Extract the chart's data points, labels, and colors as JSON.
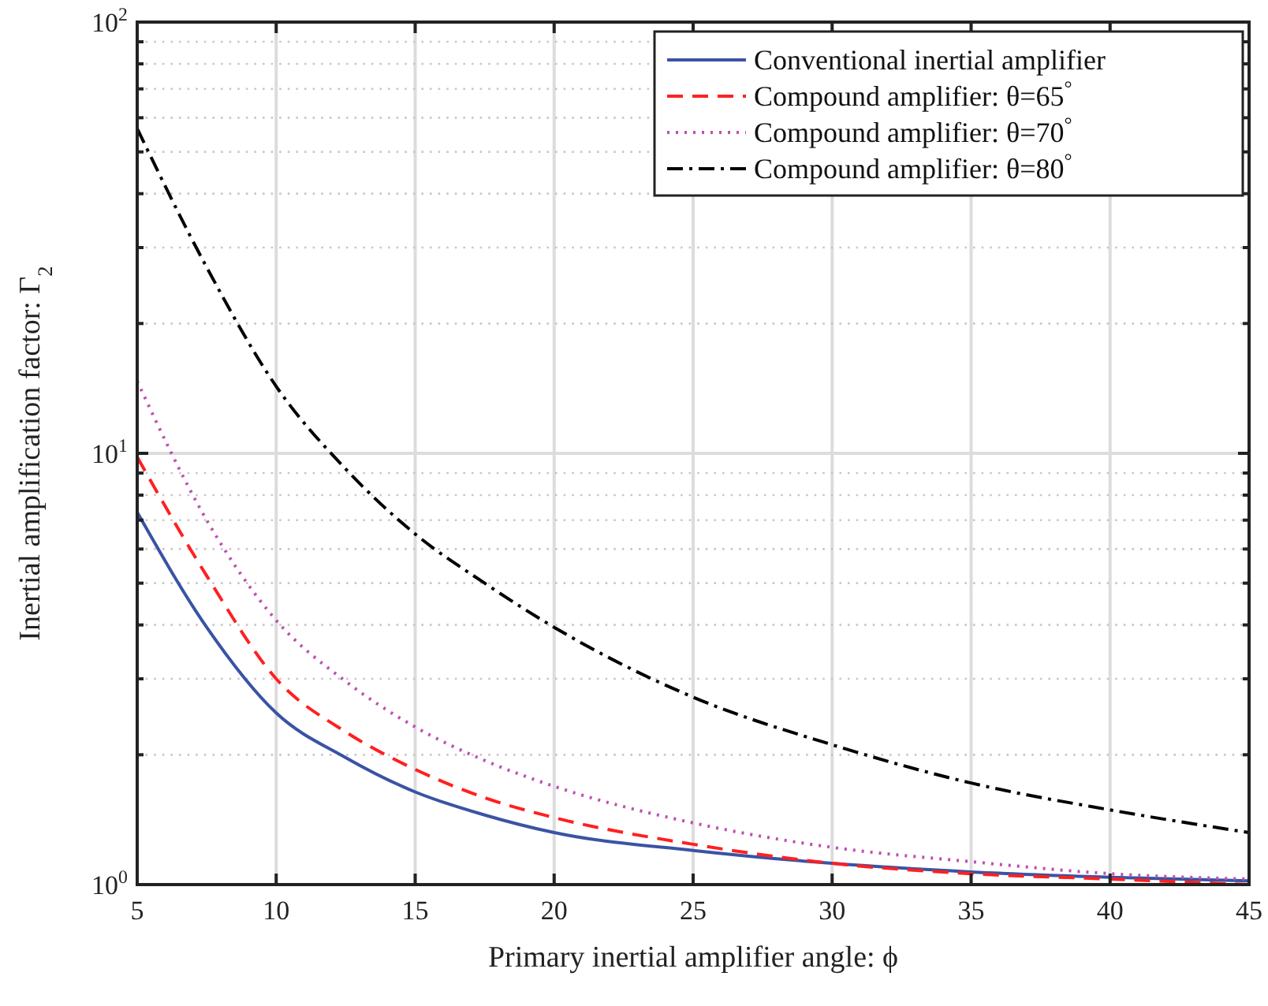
{
  "chart_data": {
    "type": "line",
    "xlabel": "Primary inertial amplifier angle: ϕ",
    "ylabel": "Inertial amplification factor: Γ$_{2}$",
    "log": "y",
    "grid": true,
    "legend": "top right",
    "xlim": [
      5,
      45
    ],
    "xticks": [
      5,
      10,
      15,
      20,
      25,
      30,
      35,
      40,
      45
    ],
    "ylim": [
      1,
      100
    ],
    "yticks": [
      {
        "value": 1,
        "label": "10$^{0}$"
      },
      {
        "value": 2,
        "label": null
      },
      {
        "value": 3,
        "label": null
      },
      {
        "value": 4,
        "label": null
      },
      {
        "value": 5,
        "label": null
      },
      {
        "value": 6,
        "label": null
      },
      {
        "value": 7,
        "label": null
      },
      {
        "value": 8,
        "label": null
      },
      {
        "value": 9,
        "label": null
      },
      {
        "value": 10,
        "label": "10$^{1}$"
      },
      {
        "value": 20,
        "label": null
      },
      {
        "value": 30,
        "label": null
      },
      {
        "value": 40,
        "label": null
      },
      {
        "value": 50,
        "label": null
      },
      {
        "value": 60,
        "label": null
      },
      {
        "value": 70,
        "label": null
      },
      {
        "value": 80,
        "label": null
      },
      {
        "value": 90,
        "label": null
      },
      {
        "value": 100,
        "label": "10$^{2}$"
      }
    ],
    "x": [
      5,
      7.5,
      10,
      12.5,
      15,
      17.5,
      20,
      25,
      30,
      35,
      40,
      45
    ],
    "series": [
      {
        "name": "Conventional inertial amplifier",
        "color": "#3a53a4",
        "line_style": "solid",
        "values": [
          7.3,
          3.95,
          2.5,
          1.97,
          1.64,
          1.45,
          1.32,
          1.2,
          1.12,
          1.07,
          1.04,
          1.02
        ]
      },
      {
        "name": "Compound amplifier: θ=65$^{°}$",
        "color": "#ff2020",
        "line_style": "dashed",
        "values": [
          9.8,
          5.2,
          3.0,
          2.26,
          1.85,
          1.59,
          1.43,
          1.24,
          1.12,
          1.06,
          1.03,
          1.0
        ]
      },
      {
        "name": "Compound amplifier: θ=70$^{°}$",
        "color": "#bf4fb0",
        "line_style": "dotted",
        "values": [
          14.7,
          7.0,
          4.1,
          2.96,
          2.32,
          1.94,
          1.69,
          1.39,
          1.22,
          1.13,
          1.06,
          1.03
        ]
      },
      {
        "name": "Compound amplifier: θ=80$^{°}$",
        "color": "#000000",
        "line_style": "dashdot",
        "values": [
          56.6,
          27,
          14.3,
          9.2,
          6.5,
          5.0,
          3.95,
          2.72,
          2.11,
          1.72,
          1.49,
          1.32
        ]
      }
    ]
  }
}
